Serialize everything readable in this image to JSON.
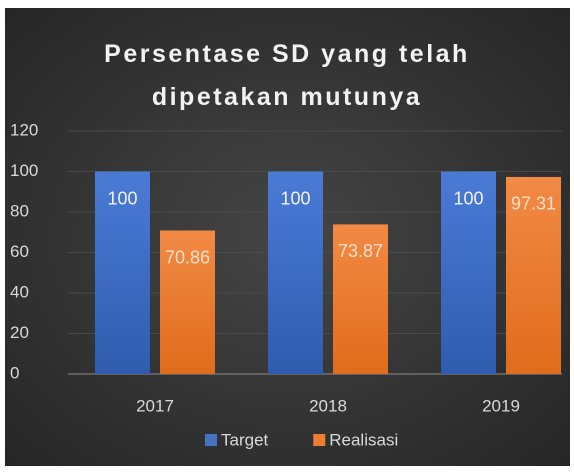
{
  "chart_data": {
    "type": "bar",
    "title": "Persentase SD yang telah dipetakan mutunya",
    "categories": [
      "2017",
      "2018",
      "2019"
    ],
    "series": [
      {
        "name": "Target",
        "color": "#4472c4",
        "values": [
          100,
          100,
          100
        ]
      },
      {
        "name": "Realisasi",
        "color": "#ed7d31",
        "values": [
          70.86,
          73.87,
          97.31
        ]
      }
    ],
    "ylim": [
      0,
      120
    ],
    "yticks": [
      0,
      20,
      40,
      60,
      80,
      100,
      120
    ],
    "grid": true,
    "legend": "bottom"
  }
}
